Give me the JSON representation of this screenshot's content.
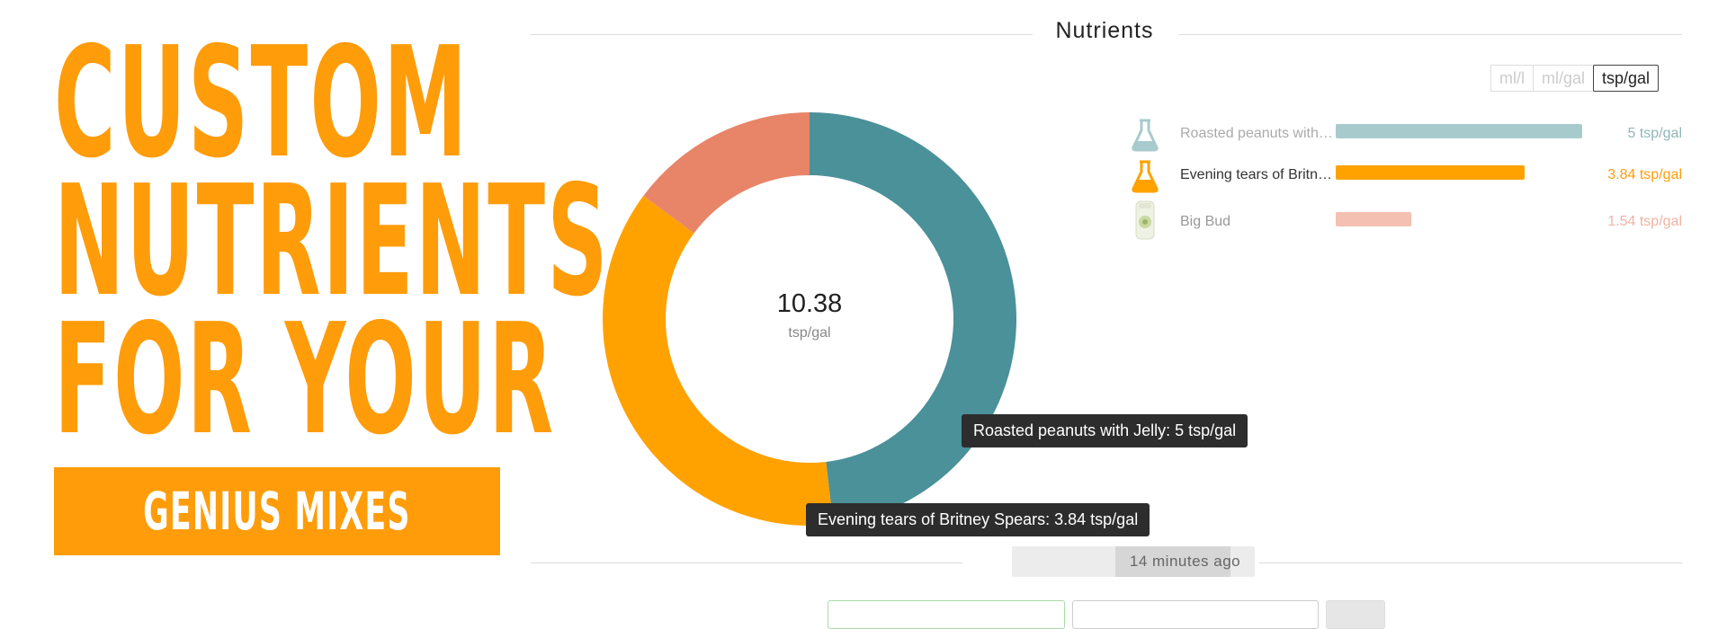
{
  "hero": {
    "lines": [
      "CUSTOM",
      "NUTRIENTS",
      "FOR YOUR"
    ],
    "banner": "GENIUS MIXES",
    "color": "#ff9c0a"
  },
  "section": {
    "title": "Nutrients"
  },
  "units": {
    "options": [
      "ml/l",
      "ml/gal",
      "tsp/gal"
    ],
    "selected": "tsp/gal"
  },
  "chart_data": {
    "type": "pie",
    "donut": true,
    "total_label": "10.38",
    "total_unit": "tsp/gal",
    "slices": [
      {
        "name": "Roasted peanuts with Jelly",
        "value": 5,
        "color": "#4a9199"
      },
      {
        "name": "Evening tears of Britney Spears",
        "value": 3.84,
        "color": "#ffa200"
      },
      {
        "name": "Big Bud",
        "value": 1.54,
        "color": "#e88468"
      }
    ]
  },
  "tooltips": [
    "Roasted peanuts with Jelly: 5 tsp/gal",
    "Evening tears of Britney Spears: 3.84 tsp/gal"
  ],
  "legend": [
    {
      "label": "Roasted peanuts with Jelly",
      "value_label": "5 tsp/gal",
      "value": 5,
      "bar_color": "#a7cbcd",
      "text_color": "#8fb6ba",
      "label_color": "#aaaaaa",
      "icon": "flask-icon",
      "icon_color": "#a7cbcd"
    },
    {
      "label": "Evening tears of Britney Spears",
      "value_label": "3.84 tsp/gal",
      "value": 3.84,
      "bar_color": "#ffa200",
      "text_color": "#ff9c0a",
      "label_color": "#333333",
      "icon": "flask-icon",
      "icon_color": "#ffa200"
    },
    {
      "label": "Big Bud",
      "value_label": "1.54 tsp/gal",
      "value": 1.54,
      "bar_color": "#f4c0b1",
      "text_color": "#f0b3a3",
      "label_color": "#999999",
      "icon": "bottle-icon",
      "icon_color": "#c9d9a0"
    }
  ],
  "timestamp": "14 minutes ago"
}
